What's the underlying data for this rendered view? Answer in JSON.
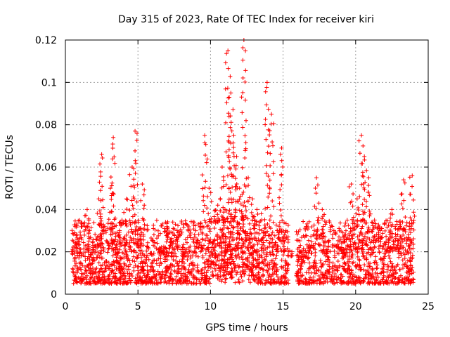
{
  "chart_data": {
    "type": "scatter",
    "title": "Day 315 of 2023, Rate Of TEC Index for receiver kiri",
    "xlabel": "GPS time / hours",
    "ylabel": "ROTI / TECUs",
    "xlim": [
      0,
      25
    ],
    "ylim": [
      0,
      0.12
    ],
    "x_ticks": [
      "0",
      "5",
      "10",
      "15",
      "20",
      "25"
    ],
    "y_ticks": [
      "0",
      "0.02",
      "0.04",
      "0.06",
      "0.08",
      "0.1",
      "0.12"
    ],
    "grid": true,
    "marker": "+",
    "color": "#ff0000",
    "series": [
      {
        "name": "ROTI",
        "x": [
          0.5,
          0.8,
          1.1,
          1.5,
          1.9,
          2.3,
          2.5,
          2.8,
          3.1,
          3.3,
          3.6,
          3.9,
          4.2,
          4.6,
          4.8,
          5.0,
          5.3,
          5.7,
          6.1,
          6.5,
          6.9,
          7.3,
          7.7,
          8.1,
          8.5,
          8.9,
          9.3,
          9.6,
          9.9,
          10.2,
          10.5,
          10.8,
          11.0,
          11.2,
          11.4,
          11.6,
          11.8,
          12.0,
          12.3,
          12.6,
          12.9,
          13.2,
          13.5,
          13.9,
          14.2,
          14.6,
          14.9,
          15.2,
          15.5,
          16.1,
          16.5,
          16.9,
          17.3,
          17.7,
          18.1,
          18.5,
          18.9,
          19.3,
          19.7,
          20.1,
          20.4,
          20.6,
          20.9,
          21.3,
          21.7,
          22.1,
          22.5,
          22.9,
          23.3,
          23.7,
          23.9
        ],
        "y": [
          0.012,
          0.028,
          0.018,
          0.04,
          0.022,
          0.045,
          0.066,
          0.03,
          0.05,
          0.074,
          0.025,
          0.035,
          0.045,
          0.06,
          0.077,
          0.03,
          0.052,
          0.022,
          0.028,
          0.02,
          0.034,
          0.025,
          0.03,
          0.02,
          0.018,
          0.028,
          0.032,
          0.075,
          0.05,
          0.025,
          0.042,
          0.06,
          0.04,
          0.115,
          0.095,
          0.075,
          0.065,
          0.05,
          0.12,
          0.055,
          0.045,
          0.04,
          0.038,
          0.1,
          0.085,
          0.03,
          0.069,
          0.03,
          0.018,
          0.02,
          0.015,
          0.022,
          0.055,
          0.04,
          0.02,
          0.03,
          0.025,
          0.028,
          0.052,
          0.045,
          0.075,
          0.065,
          0.055,
          0.035,
          0.03,
          0.025,
          0.04,
          0.028,
          0.054,
          0.032,
          0.056
        ]
      }
    ],
    "dense_band": {
      "note": "dense background cloud of ROTI points between 0.005 and ~0.035 TECUs across the observed interval",
      "x_range": [
        0.4,
        24.0
      ],
      "y_range": [
        0.005,
        0.035
      ],
      "gap_hours": [
        15.4,
        15.9
      ]
    }
  }
}
